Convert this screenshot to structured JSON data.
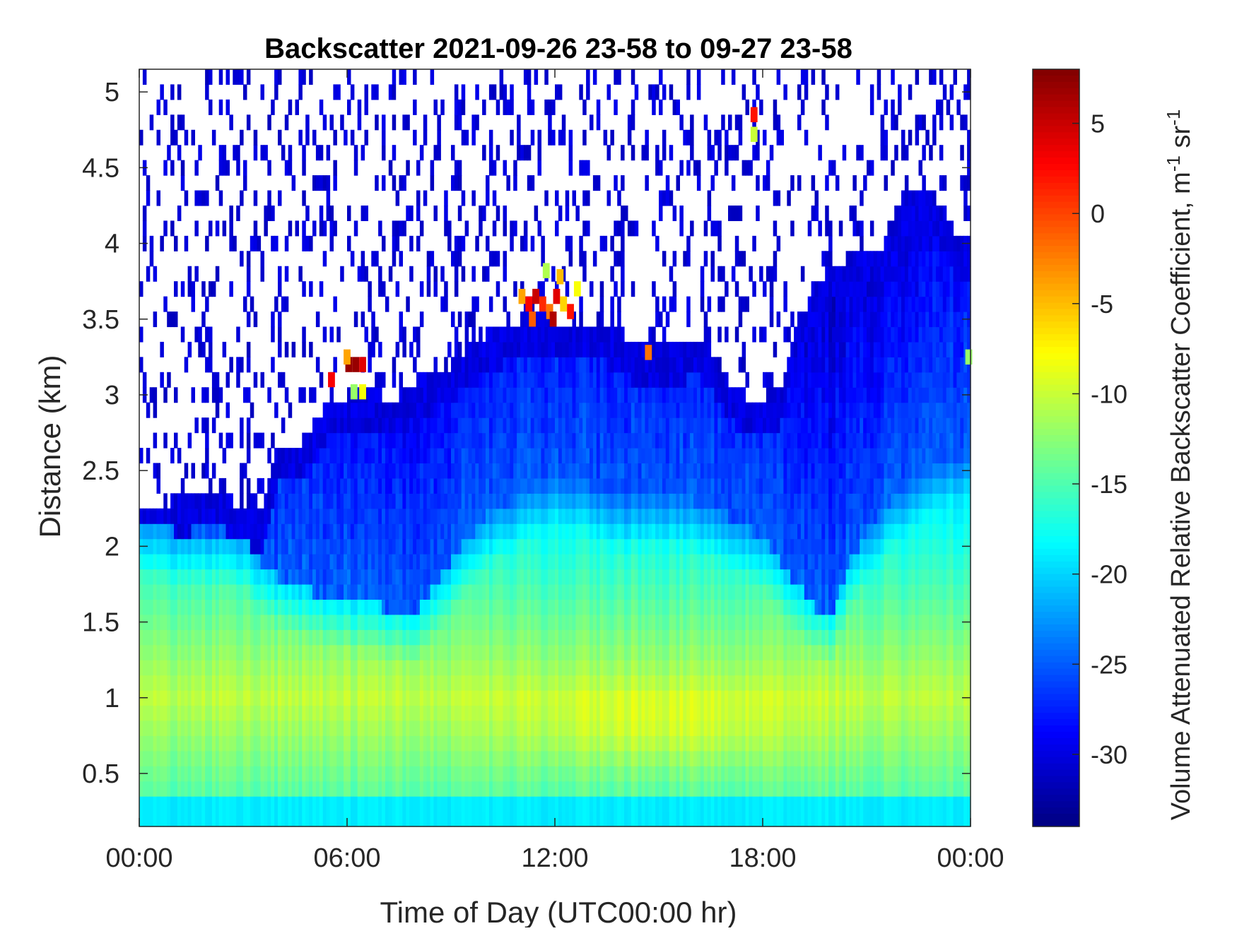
{
  "chart_data": {
    "type": "heatmap",
    "title": "Backscatter 2021-09-26 23-58 to 09-27 23-58",
    "xlabel": "Time of Day (UTC00:00 hr)",
    "ylabel": "Distance (km)",
    "colorbar_label_main": "Volume Attenuated Relative Backscatter Coefficient, m",
    "colorbar_label_exp1": "-1",
    "colorbar_label_mid": " sr",
    "colorbar_label_exp2": "-1",
    "xlim_hours": [
      0,
      24
    ],
    "ylim_km": [
      0.15,
      5.15
    ],
    "clim": [
      -34,
      8
    ],
    "colormap": "jet",
    "x_ticks": [
      {
        "value": 0,
        "label": "00:00"
      },
      {
        "value": 6,
        "label": "06:00"
      },
      {
        "value": 12,
        "label": "12:00"
      },
      {
        "value": 18,
        "label": "18:00"
      },
      {
        "value": 24,
        "label": "00:00"
      }
    ],
    "y_ticks": [
      {
        "value": 0.5,
        "label": "0.5"
      },
      {
        "value": 1,
        "label": "1"
      },
      {
        "value": 1.5,
        "label": "1.5"
      },
      {
        "value": 2,
        "label": "2"
      },
      {
        "value": 2.5,
        "label": "2.5"
      },
      {
        "value": 3,
        "label": "3"
      },
      {
        "value": 3.5,
        "label": "3.5"
      },
      {
        "value": 4,
        "label": "4"
      },
      {
        "value": 4.5,
        "label": "4.5"
      },
      {
        "value": 5,
        "label": "5"
      }
    ],
    "colorbar_ticks": [
      {
        "value": 5,
        "label": "5"
      },
      {
        "value": 0,
        "label": "0"
      },
      {
        "value": -5,
        "label": "-5"
      },
      {
        "value": -10,
        "label": "-10"
      },
      {
        "value": -15,
        "label": "-15"
      },
      {
        "value": -20,
        "label": "-20"
      },
      {
        "value": -25,
        "label": "-25"
      },
      {
        "value": -30,
        "label": "-30"
      }
    ],
    "cloud_top_km": {
      "hours": [
        0,
        0.5,
        1,
        1.5,
        2,
        2.5,
        3,
        3.5,
        4,
        4.5,
        5,
        5.5,
        6,
        6.5,
        7,
        7.5,
        8,
        8.5,
        9,
        9.5,
        10,
        10.5,
        11,
        11.5,
        12,
        12.5,
        13,
        13.5,
        14,
        14.5,
        15,
        15.5,
        16,
        16.5,
        17,
        17.5,
        18,
        18.5,
        19,
        19.5,
        20,
        20.5,
        21,
        21.5,
        22,
        22.5,
        23,
        23.5,
        24
      ],
      "values": [
        2.3,
        2.3,
        2.28,
        2.35,
        2.35,
        2.35,
        2.25,
        2.2,
        2.65,
        2.65,
        2.8,
        3.0,
        3.0,
        3.05,
        3.0,
        3.0,
        3.1,
        3.15,
        3.2,
        3.3,
        3.4,
        3.45,
        3.5,
        3.55,
        3.5,
        3.5,
        3.5,
        3.45,
        3.4,
        3.3,
        3.35,
        3.3,
        3.4,
        3.3,
        3.1,
        3.0,
        2.95,
        3.0,
        3.5,
        3.7,
        3.85,
        3.9,
        3.95,
        4.0,
        4.3,
        4.4,
        4.3,
        4.1,
        4.0
      ]
    },
    "cloud_base_km": {
      "hours": [
        0,
        1,
        2,
        3,
        3.5,
        4,
        5,
        6,
        7,
        8,
        9,
        10,
        11,
        12,
        13,
        14,
        15,
        16,
        17,
        18,
        18.5,
        19,
        19.5,
        20,
        20.5,
        21,
        22,
        23,
        24
      ],
      "values": [
        2.15,
        2.1,
        2.1,
        2.05,
        1.9,
        1.8,
        1.7,
        1.65,
        1.6,
        1.55,
        1.9,
        2.2,
        2.35,
        2.5,
        2.4,
        2.3,
        2.35,
        2.3,
        2.2,
        2.05,
        1.9,
        1.75,
        1.6,
        1.55,
        1.9,
        2.1,
        2.4,
        2.6,
        2.7
      ]
    },
    "high_backscatter_cells": [
      {
        "hour": 6.05,
        "km": 3.2,
        "value": 7
      },
      {
        "hour": 6.25,
        "km": 3.2,
        "value": 7
      },
      {
        "hour": 6.45,
        "km": 3.2,
        "value": 4
      },
      {
        "hour": 6.0,
        "km": 3.25,
        "value": -4
      },
      {
        "hour": 6.2,
        "km": 3.02,
        "value": -12
      },
      {
        "hour": 6.45,
        "km": 3.02,
        "value": -8
      },
      {
        "hour": 5.55,
        "km": 3.1,
        "value": 3
      },
      {
        "hour": 11.05,
        "km": 3.65,
        "value": -4
      },
      {
        "hour": 11.25,
        "km": 3.6,
        "value": 3
      },
      {
        "hour": 11.45,
        "km": 3.65,
        "value": 5
      },
      {
        "hour": 11.65,
        "km": 3.6,
        "value": 1
      },
      {
        "hour": 11.85,
        "km": 3.55,
        "value": -2
      },
      {
        "hour": 12.05,
        "km": 3.65,
        "value": 4
      },
      {
        "hour": 12.25,
        "km": 3.6,
        "value": -6
      },
      {
        "hour": 12.45,
        "km": 3.55,
        "value": 2
      },
      {
        "hour": 12.65,
        "km": 3.7,
        "value": -8
      },
      {
        "hour": 11.35,
        "km": 3.5,
        "value": -1
      },
      {
        "hour": 11.95,
        "km": 3.5,
        "value": 6
      },
      {
        "hour": 11.75,
        "km": 3.82,
        "value": -11
      },
      {
        "hour": 12.15,
        "km": 3.78,
        "value": -5
      },
      {
        "hour": 14.7,
        "km": 3.28,
        "value": -2
      },
      {
        "hour": 17.75,
        "km": 4.85,
        "value": 2
      },
      {
        "hour": 17.75,
        "km": 4.72,
        "value": -10
      },
      {
        "hour": 23.95,
        "km": 3.25,
        "value": -12
      }
    ]
  }
}
